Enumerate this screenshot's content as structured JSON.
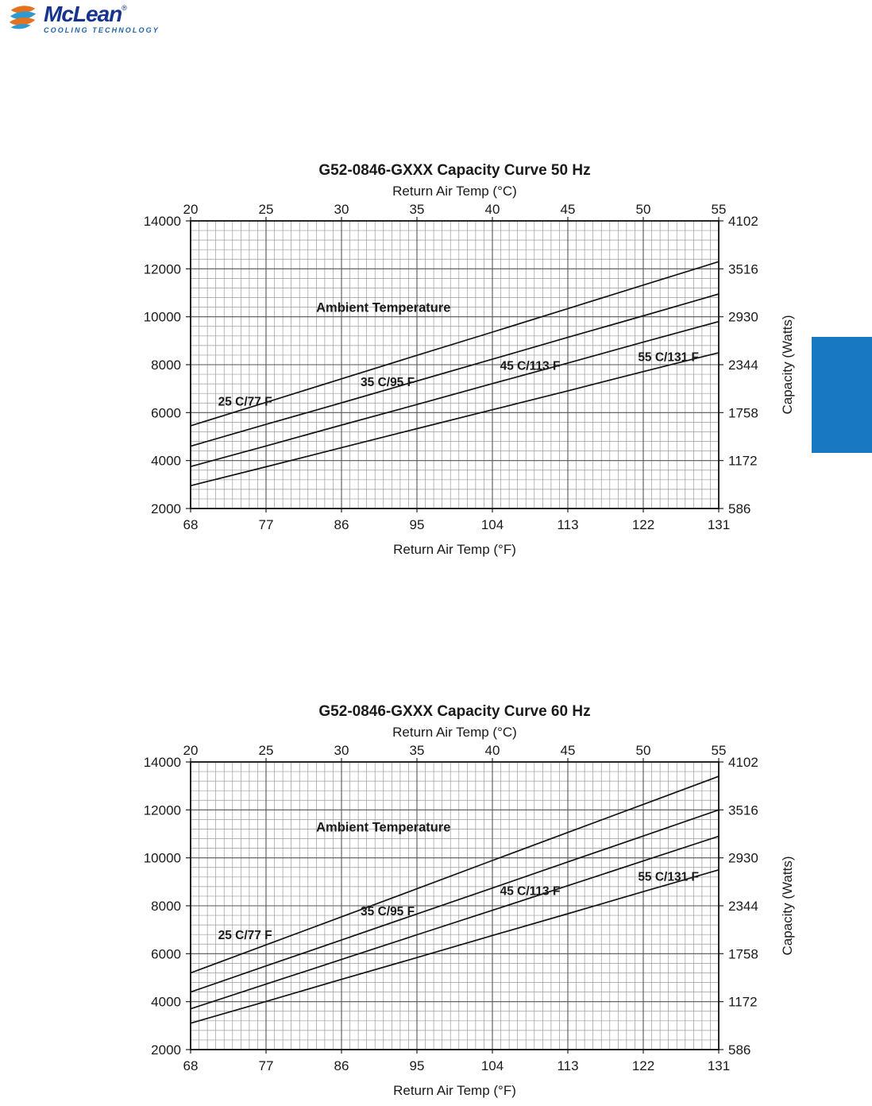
{
  "logo": {
    "icon": "stacked-discs-swirl-icon",
    "brand": "McLean",
    "registered_mark": "®",
    "tagline": "COOLING TECHNOLOGY",
    "colors": {
      "brand_text": "#15338f",
      "tagline_text": "#1e63ae",
      "orange": "#e4721e",
      "blue": "#2e9ad4"
    }
  },
  "side_tab": {
    "color": "#1878c2"
  },
  "chart_data": [
    {
      "id": "capacity-curve-50hz",
      "type": "line",
      "title": "G52-0846-GXXX Capacity Curve 50 Hz",
      "top_axis": {
        "label": "Return Air Temp (°C)",
        "ticks": [
          "20",
          "25",
          "30",
          "35",
          "40",
          "45",
          "50",
          "55"
        ]
      },
      "bottom_axis": {
        "label": "Return Air Temp (°F)",
        "ticks": [
          "68",
          "77",
          "86",
          "95",
          "104",
          "113",
          "122",
          "131"
        ]
      },
      "left_axis": {
        "ticks": [
          "14000",
          "12000",
          "10000",
          "8000",
          "6000",
          "4000",
          "2000"
        ]
      },
      "right_axis": {
        "label": "Capacity (Watts)",
        "ticks": [
          "4102",
          "3516",
          "2930",
          "2344",
          "1758",
          "1172",
          "586"
        ]
      },
      "xlim": [
        68,
        131
      ],
      "ylim": [
        2000,
        14000
      ],
      "y_major_step": 2000,
      "x_minor_per_major": 9,
      "y_minor_per_major": 5,
      "grid": true,
      "legend": "inline-labels",
      "annotation": {
        "text": "Ambient Temperature",
        "x": 91,
        "y": 10200
      },
      "x_values": [
        68,
        77,
        86,
        95,
        104,
        113,
        122,
        131
      ],
      "series": [
        {
          "name": "25 C/77 F",
          "values": [
            5450,
            6430,
            7410,
            8390,
            9360,
            10340,
            11320,
            12300
          ],
          "label_x": 74.5,
          "label_y": 6300
        },
        {
          "name": "35 C/95 F",
          "values": [
            4600,
            5510,
            6410,
            7320,
            8230,
            9140,
            10040,
            10950
          ],
          "label_x": 91.5,
          "label_y": 7100
        },
        {
          "name": "45 C/113 F",
          "values": [
            3750,
            4610,
            5480,
            6340,
            7210,
            8070,
            8940,
            9800
          ],
          "label_x": 108.5,
          "label_y": 7780
        },
        {
          "name": "55 C/131 F",
          "values": [
            2950,
            3740,
            4540,
            5330,
            6120,
            6910,
            7710,
            8500
          ],
          "label_x": 125,
          "label_y": 8150
        }
      ]
    },
    {
      "id": "capacity-curve-60hz",
      "type": "line",
      "title": "G52-0846-GXXX Capacity Curve 60 Hz",
      "top_axis": {
        "label": "Return Air Temp (°C)",
        "ticks": [
          "20",
          "25",
          "30",
          "35",
          "40",
          "45",
          "50",
          "55"
        ]
      },
      "bottom_axis": {
        "label": "Return Air Temp (°F)",
        "ticks": [
          "68",
          "77",
          "86",
          "95",
          "104",
          "113",
          "122",
          "131"
        ]
      },
      "left_axis": {
        "ticks": [
          "14000",
          "12000",
          "10000",
          "8000",
          "6000",
          "4000",
          "2000"
        ]
      },
      "right_axis": {
        "label": "Capacity (Watts)",
        "ticks": [
          "4102",
          "3516",
          "2930",
          "2344",
          "1758",
          "1172",
          "586"
        ]
      },
      "xlim": [
        68,
        131
      ],
      "ylim": [
        2000,
        14000
      ],
      "y_major_step": 2000,
      "x_minor_per_major": 9,
      "y_minor_per_major": 5,
      "grid": true,
      "legend": "inline-labels",
      "annotation": {
        "text": "Ambient Temperature",
        "x": 91,
        "y": 11100
      },
      "x_values": [
        68,
        77,
        86,
        95,
        104,
        113,
        122,
        131
      ],
      "series": [
        {
          "name": "25 C/77 F",
          "values": [
            5200,
            6370,
            7540,
            8710,
            9890,
            11060,
            12230,
            13400
          ],
          "label_x": 74.5,
          "label_y": 6600
        },
        {
          "name": "35 C/95 F",
          "values": [
            4400,
            5490,
            6570,
            7660,
            8740,
            9830,
            10910,
            12000
          ],
          "label_x": 91.5,
          "label_y": 7600
        },
        {
          "name": "45 C/113 F",
          "values": [
            3700,
            4730,
            5760,
            6790,
            7810,
            8840,
            9870,
            10900
          ],
          "label_x": 108.5,
          "label_y": 8450
        },
        {
          "name": "55 C/131 F",
          "values": [
            3100,
            4010,
            4930,
            5840,
            6760,
            7670,
            8590,
            9500
          ],
          "label_x": 125,
          "label_y": 9050
        }
      ]
    }
  ]
}
